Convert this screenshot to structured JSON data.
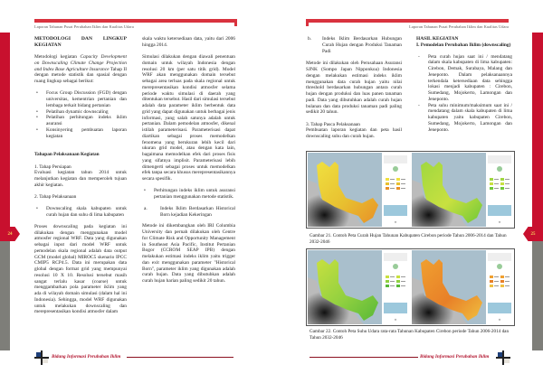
{
  "header": {
    "running_title": "Laporan Tahunan Pusat Perubahan Iklim dan Kualitas Udara"
  },
  "footer": {
    "text": "Bidang Informasi Perubahan Iklim"
  },
  "page_numbers": {
    "left": "24",
    "right": "25"
  },
  "colors": {
    "accent_red": "#c8102e",
    "sidebar_gray": "#7e7e79"
  },
  "left": {
    "c1": {
      "heading": "METODOLOGI DAN LINGKUP KEGIATAN",
      "intro_a": "Metodologi kegiatan ",
      "intro_i": "Capacity Development on Downscaling Climate Change Projection and Index Base Agriculture Insurance",
      "intro_b": " Tahap II dengan metode statistik dan spasial dengan ruang lingkup sebagai berikut:",
      "bullets": [
        "Focus Group Discussion (FGD) dengan universitas, kementrian pertanian dan lembaga terkait bidang pertanian",
        "Pelatihan dynamic downscaling",
        "Pelatihan perhitungan indeks iklim asuransi",
        "Konsinyering pembuatan laporan kegiatan"
      ],
      "sub_heading": "Tahapan Pelaksanaan Kegiatan",
      "step1": "1.   Tahap Persiapan",
      "step1_text": "Evaluasi kegiatan tahun 2014 untuk melanjutkan kegiatan dan memperoleh tujuan akhir kegiatan.",
      "step2": "2.   Tahap Pelaksanaan",
      "step2_bullet": "Downscaling skala kabupaten untuk curah hujan dan suhu di lima kabupaten",
      "para": "Proses downscaling pada kegiatan ini dilakukan dengan menggunakan model atmosfer regional WRF. Data yang digunakan sebagai input dari model WRF untuk pemodelan skala regional adalah data output GCM (model global) MIROC5 skenario IPCC CMIP5 RCP4.5. Data ini merupakan data global dengan format grid yang mempunyai resolusi 10 X 10. Resolusi tersebut masih sangat terlalu kasar (coarse) untuk menggambarkan pola parameter iklim yang ada di wilayah domain simulasi (dalam hal ini Indonesia). Sehingga, model WRF digunakan untuk melakukan downscaling dan merepresentasikan kondisi atmosfer dalam"
    },
    "c2": {
      "p1": "skala waktu ketersediaan data, yaitu dari 2006 hingga 2014.",
      "p2": "Simulasi dilakukan dengan diawali penentuan domain untuk wilayah Indonesia dengan resolusi 20 km (per satu titik grid). Model WRF akan menggunakan domain tersebut sebagai area terluas pada skala regional untuk merepresentasikan kondisi atmosfer selama periode waktu simulasi di daerah yang ditentukan tersebut. Hasil dari simulasi tersebut adalah data parameter iklim berbentuk data grid yang dapat digunakan untuk berbagai jenis informasi, yang salah satunya adalah untuk pertanian. Dalam pemodelan atmosfer, dikenal istilah parameterisasi. Parameterisasi dapat diartikan sebagai proses memodelkan fenomena yang berukuran lebih kecil dari ukuran grid model, atau dengan kata lain, bagaimana memodelkan efek dari proses fisis yang sifatnya implisit. Parameterisasi lebih dimengerti sebagai proses untuk memodelkan efek tanpa secara khusus merepresentasikannya secara spesifik.",
      "bullet": "Perhitungan indeks iklim untuk asuransi pertanian menggunakan metode statistik.",
      "sub_a": "Indeks Iklim Berdasarkan Historical Born kejadian Kekeringan",
      "p3": "Metode ini dikembangkan oleh IRI Columbia University dan pernah dilakukan oleh Centre for Climate Risk and Opportunity Management in Southeast Asia Pacific, Institut Pertanian Bogor (CCROM SEAP IPB) dengan melakukan estimasi indeks iklim yaitu trigger dan exit menggunakan parameter \"Historical Born\", parameter iklim yang digunakan adalah curah hujan. Data yang dibutuhkan adalah curah hujan harian paling sedikit 20 tahun."
    }
  },
  "right": {
    "c1": {
      "sub_b": "Indeks Iklim Berdasarkan Hubungan Curah Hujan dengan Produksi Tanaman Padi",
      "p1": "Metode ini dilakukan oleh Perusahaan Asuransi SJNK (Sompo Japan Nipponkoa) Indonesia dengan melakukan estimasi indeks iklim menggunakan data curah hujan yaitu nilai threshold berdasarkan hubungan antara curah hujan dengan produksi dan luas panen tanaman padi. Data yang dibutuhkan adalah curah hujan bulanan dan data produksi tanaman padi paling sedikit 20 tahun.",
      "step3": "3. Tahap Pasca Pelaksanaan",
      "step3_text": "Pembuatan laporan kegiatan dan peta hasil downscaling suhu dan curah hujan."
    },
    "c2": {
      "heading": "HASIL KEGIATAN",
      "sub": "I.   Pemodelan Perubahan Iklim (downscaling)",
      "items": [
        "Peta curah hujan saat ini / mendatang dalam skala kabupaten di lima kabupaten: Cirebon, Demak, Surabaya, Malang dan Jeneponto. Dalam pelaksanaannya terkendala ketersediaan data sehingga lokasi menjadi kabupaten : Cirebon, Sumedang, Mojokerto, Lamongan dan Jeneponto.",
        "Peta suhu minimum/maksimum saat ini / mendatang dalam skala kabupaten di lima kabupaten yaitu kabupaten Cirebon, Sumedang, Mojokerto, Lamongan dan Jeneponto."
      ]
    },
    "figures": [
      {
        "caption": "Gambar 21. Contoh Peta Curah Hujan Tahunan Kabupaten Cirebon periode Tahun 2006-2014 dan Tahun 2032-2046",
        "maps": [
          {
            "palette": [
              "#f0e040",
              "#e8c030",
              "#e89028"
            ]
          },
          {
            "palette": [
              "#a0d840",
              "#c8e040",
              "#70c838"
            ]
          }
        ]
      },
      {
        "caption": "Gambar 22. Contoh Peta Suhu Udara rata-rata Tahunan Kabupaten Cirebon periode Tahun 2006-2014 dan Tahun 2032-2046",
        "maps": [
          {
            "palette": [
              "#c8e040",
              "#90d040",
              "#58b838"
            ]
          },
          {
            "palette": [
              "#f0a030",
              "#e88028",
              "#f0c040"
            ]
          }
        ]
      }
    ]
  }
}
